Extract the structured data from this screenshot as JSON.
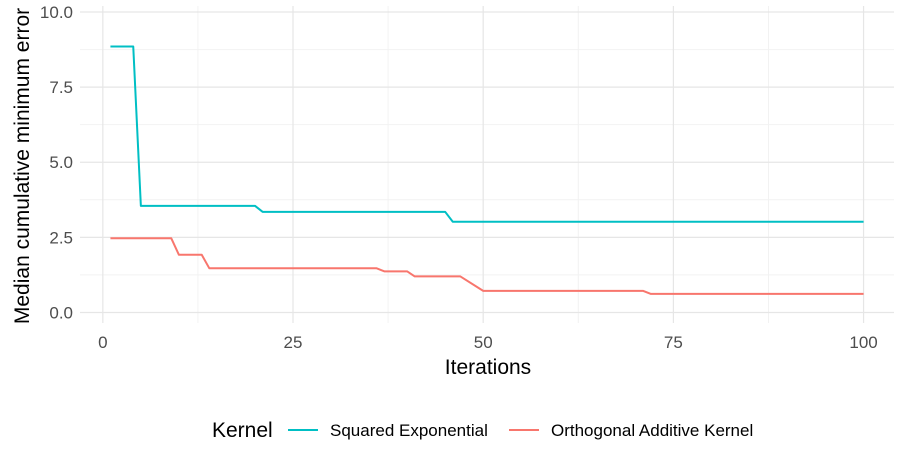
{
  "chart_data": {
    "type": "line",
    "xlabel": "Iterations",
    "ylabel": "Median cumulative minimum error",
    "xlim": [
      -3,
      104
    ],
    "ylim": [
      -0.35,
      10.2
    ],
    "x_ticks": [
      0,
      25,
      50,
      75,
      100
    ],
    "x_tick_labels": [
      "0",
      "25",
      "50",
      "75",
      "100"
    ],
    "y_ticks": [
      0,
      2.5,
      5,
      7.5,
      10
    ],
    "y_tick_labels": [
      "0.0",
      "2.5",
      "5.0",
      "7.5",
      "10.0"
    ],
    "grid": true,
    "legend": {
      "title": "Kernel",
      "position": "bottom"
    },
    "series": [
      {
        "name": "Squared Exponential",
        "color": "#00BFC4",
        "points": [
          [
            1,
            8.85
          ],
          [
            4,
            8.85
          ],
          [
            5,
            3.55
          ],
          [
            20,
            3.55
          ],
          [
            21,
            3.35
          ],
          [
            45,
            3.35
          ],
          [
            46,
            3.02
          ],
          [
            100,
            3.02
          ]
        ]
      },
      {
        "name": "Orthogonal Additive Kernel",
        "color": "#F8766D",
        "points": [
          [
            1,
            2.47
          ],
          [
            9,
            2.47
          ],
          [
            10,
            1.92
          ],
          [
            13,
            1.92
          ],
          [
            14,
            1.47
          ],
          [
            36,
            1.47
          ],
          [
            37,
            1.37
          ],
          [
            40,
            1.37
          ],
          [
            41,
            1.2
          ],
          [
            47,
            1.2
          ],
          [
            50,
            0.72
          ],
          [
            71,
            0.72
          ],
          [
            72,
            0.62
          ],
          [
            100,
            0.62
          ]
        ]
      }
    ]
  }
}
